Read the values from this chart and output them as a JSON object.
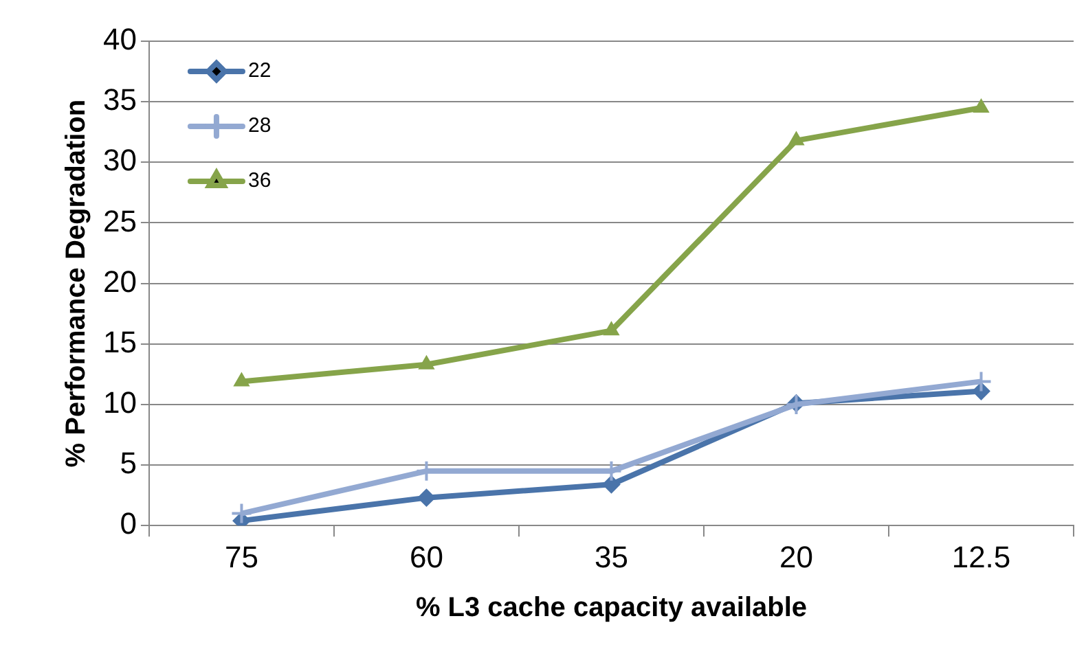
{
  "chart_data": {
    "type": "line",
    "xlabel": "% L3 cache capacity available",
    "ylabel": "% Performance Degradation",
    "categories": [
      "75",
      "60",
      "35",
      "20",
      "12.5"
    ],
    "series": [
      {
        "name": "22",
        "color": "#4a74aa",
        "marker": "diamond",
        "values": [
          0.4,
          2.3,
          3.4,
          10.1,
          11.1
        ]
      },
      {
        "name": "28",
        "color": "#93a9d2",
        "marker": "cross",
        "values": [
          1.0,
          4.5,
          4.5,
          10.0,
          11.9
        ]
      },
      {
        "name": "36",
        "color": "#86a44a",
        "marker": "triangle",
        "values": [
          11.9,
          13.3,
          16.1,
          31.8,
          34.5
        ]
      }
    ],
    "ylim": [
      0,
      40
    ],
    "yticks": [
      0,
      5,
      10,
      15,
      20,
      25,
      30,
      35,
      40
    ],
    "grid": "y",
    "legend": "top left"
  }
}
